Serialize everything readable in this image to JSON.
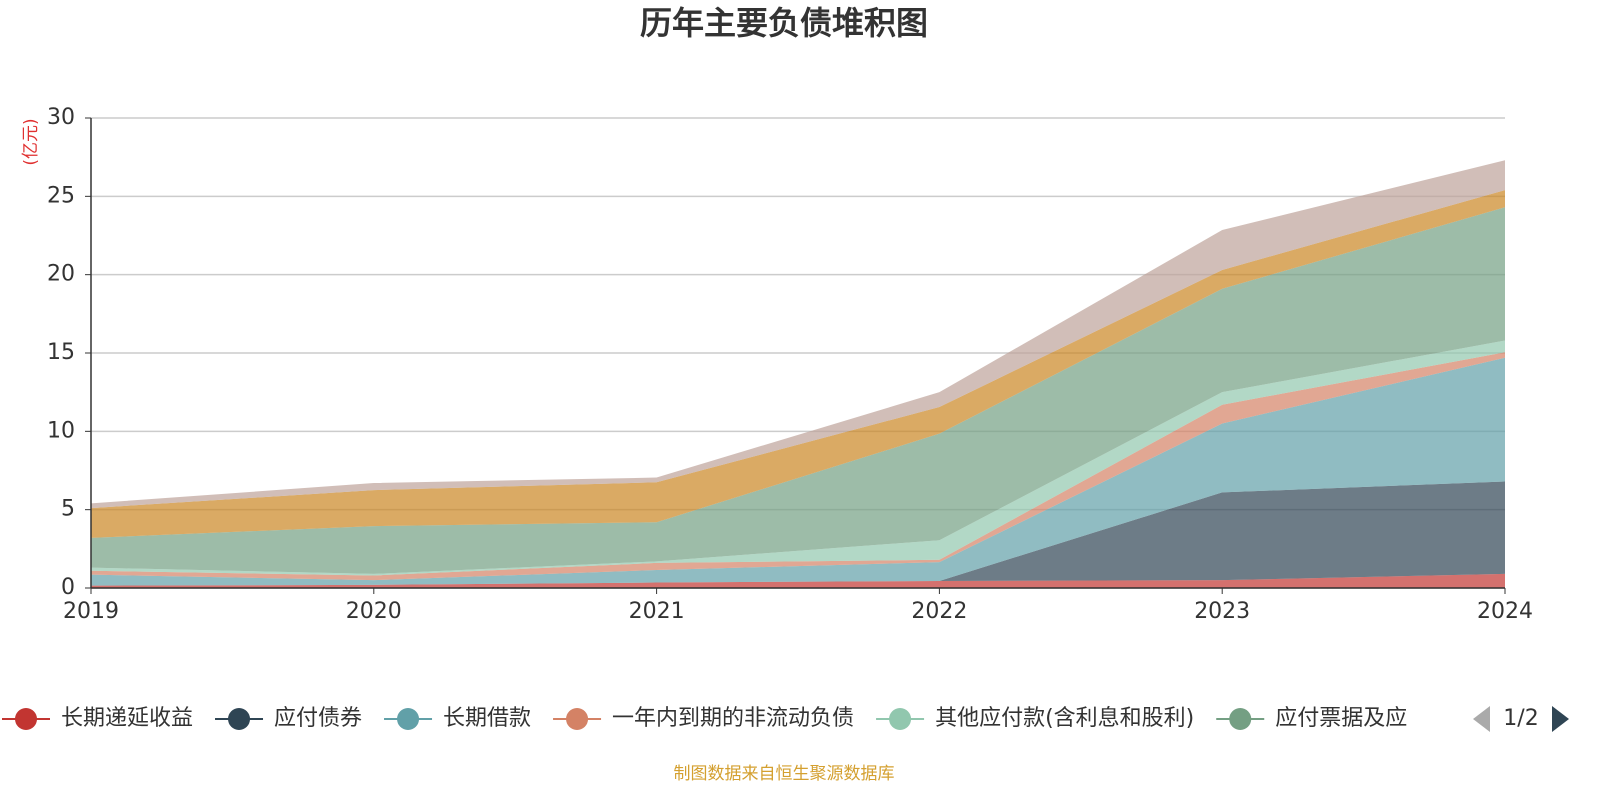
{
  "chart_data": {
    "type": "stacked_area",
    "title": "历年主要负债堆积图",
    "y_unit": "(亿元)",
    "x": [
      2019,
      2020,
      2021,
      2022,
      2023,
      2024
    ],
    "xlim": [
      2019,
      2024
    ],
    "xticks": [
      2019,
      2020,
      2021,
      2022,
      2023,
      2024
    ],
    "ylim": [
      0,
      30
    ],
    "yticks": [
      0,
      5,
      10,
      15,
      20,
      25,
      30
    ],
    "grid": true,
    "series": [
      {
        "name": "长期递延收益",
        "color": "#c23531",
        "values": [
          0.15,
          0.2,
          0.35,
          0.45,
          0.5,
          0.9
        ]
      },
      {
        "name": "应付债券",
        "color": "#2f4554",
        "values": [
          0,
          0,
          0,
          0,
          5.6,
          5.9
        ]
      },
      {
        "name": "长期借款",
        "color": "#61a0a8",
        "values": [
          0.7,
          0.3,
          0.8,
          1.2,
          4.4,
          7.9
        ]
      },
      {
        "name": "一年内到期的非流动负债",
        "color": "#d48265",
        "values": [
          0.25,
          0.3,
          0.45,
          0.15,
          1.2,
          0.35
        ]
      },
      {
        "name": "其他应付款(含利息和股利)",
        "color": "#91c7ae",
        "values": [
          0.2,
          0.1,
          0.1,
          1.25,
          0.8,
          0.75
        ]
      },
      {
        "name": "应付票据及应",
        "color": "#749f83",
        "values": [
          1.9,
          3.05,
          2.5,
          6.8,
          6.6,
          8.5
        ]
      },
      {
        "color": "#ca8622",
        "values": [
          1.9,
          2.3,
          2.55,
          1.7,
          1.2,
          1.1
        ]
      },
      {
        "color": "#bda29a",
        "values": [
          0.3,
          0.45,
          0.3,
          0.95,
          2.55,
          1.9
        ]
      }
    ],
    "legend_page": "1/2",
    "source": "制图数据来自恒生聚源数据库"
  }
}
